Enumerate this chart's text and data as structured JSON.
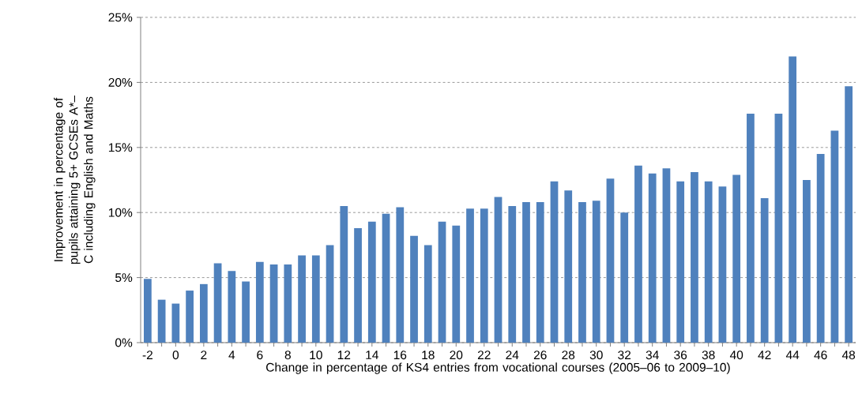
{
  "chart_data": {
    "type": "bar",
    "xlabel": "Change in percentage of KS4 entries from vocational courses (2005–06 to 2009–10)",
    "ylabel": "Improvement in percentage of pupils attaining 5+ GCSEs A*–C including English and Maths",
    "categories": [
      "-2",
      null,
      "0",
      null,
      "2",
      null,
      "4",
      null,
      "6",
      null,
      "8",
      null,
      "10",
      null,
      "12",
      null,
      "14",
      null,
      "16",
      null,
      "18",
      null,
      "20",
      null,
      "22",
      null,
      "24",
      null,
      "26",
      null,
      "28",
      null,
      "30",
      null,
      "32",
      null,
      "34",
      null,
      "36",
      null,
      "38",
      null,
      "40",
      null,
      "42",
      null,
      "44",
      null,
      "46",
      null,
      "48"
    ],
    "values": [
      4.9,
      3.3,
      3.0,
      4.0,
      4.5,
      6.1,
      5.5,
      4.7,
      6.2,
      6.0,
      6.0,
      6.7,
      6.7,
      7.5,
      10.5,
      8.8,
      9.3,
      9.9,
      10.4,
      8.2,
      7.5,
      9.3,
      9.0,
      10.3,
      10.3,
      11.2,
      10.5,
      10.8,
      10.8,
      12.4,
      11.7,
      10.8,
      10.9,
      12.6,
      10.0,
      13.6,
      13.0,
      13.4,
      12.4,
      13.1,
      12.4,
      12.0,
      12.9,
      17.6,
      11.1,
      17.6,
      22.0,
      12.5,
      14.5,
      16.3,
      19.7
    ],
    "color": "#4f81bd",
    "ylim": [
      0,
      25
    ],
    "yticks": [
      {
        "value": 0,
        "label": "0%"
      },
      {
        "value": 5,
        "label": "5%"
      },
      {
        "value": 10,
        "label": "10%"
      },
      {
        "value": 15,
        "label": "15%"
      },
      {
        "value": 20,
        "label": "20%"
      },
      {
        "value": 25,
        "label": "25%"
      }
    ],
    "grid": "y"
  }
}
